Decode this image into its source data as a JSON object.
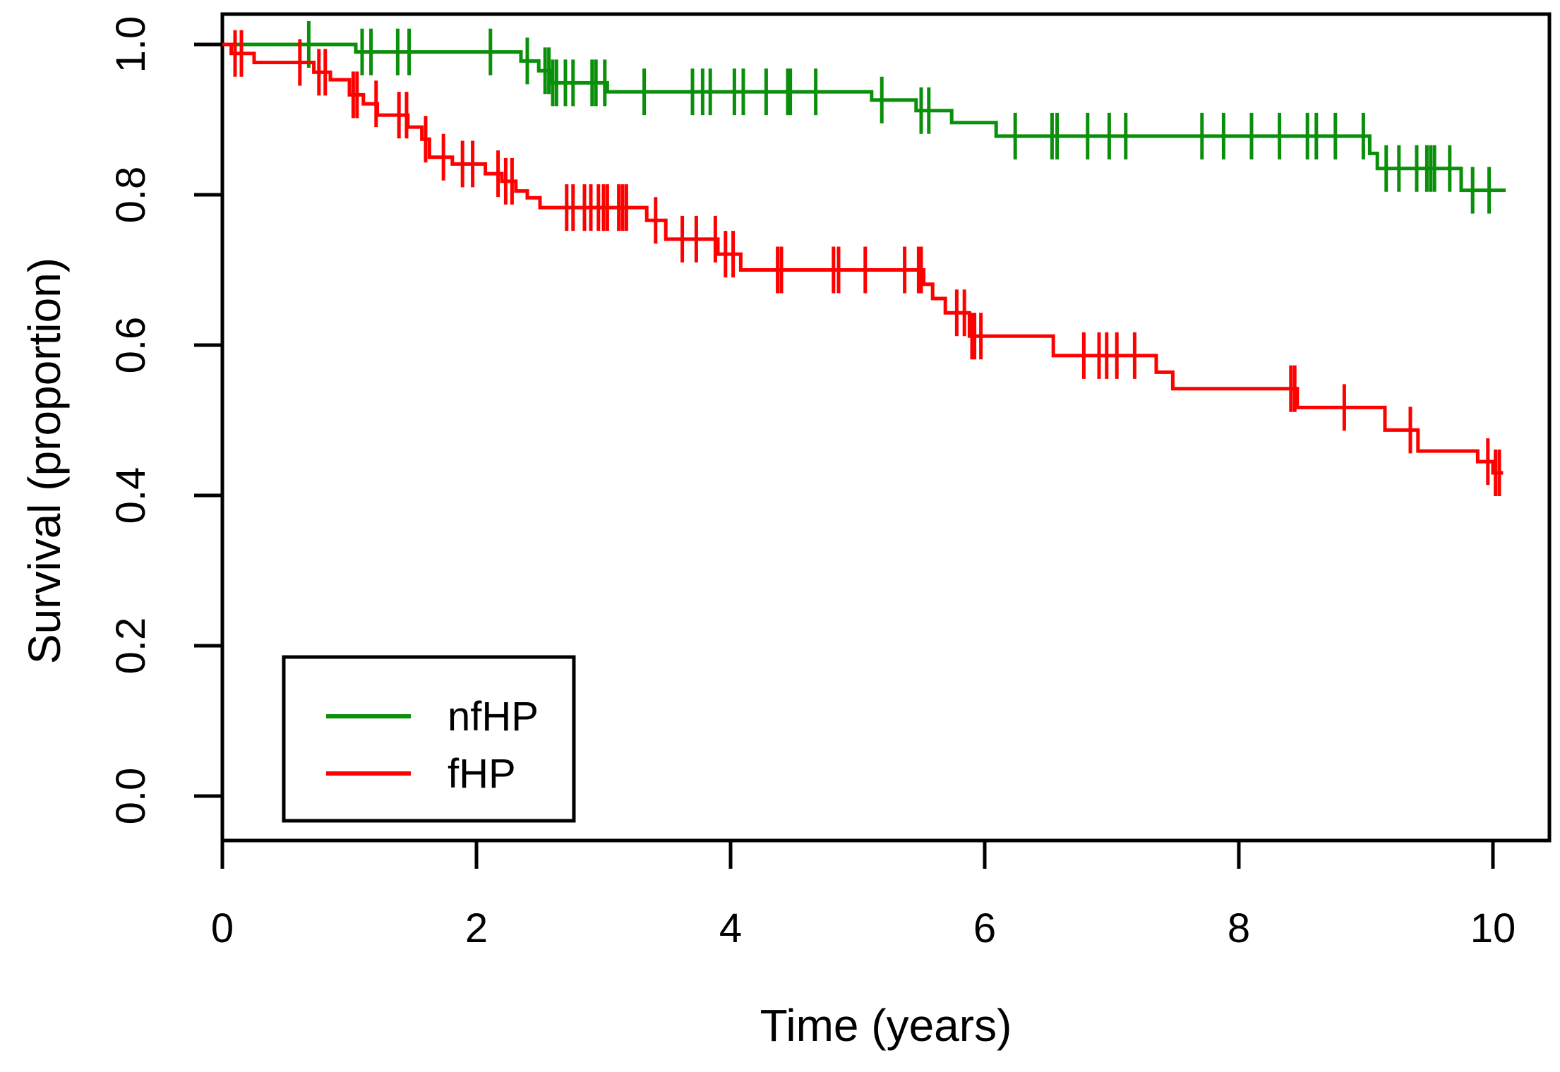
{
  "figure": {
    "title": "",
    "background_color": "#FFFFFF",
    "plot_border_color": "#000000"
  },
  "chart_data": {
    "type": "line",
    "subtype": "kaplan_meier_step",
    "title": "",
    "xlabel": "Time (years)",
    "ylabel": "Survival (proportion)",
    "xlim": [
      0,
      10.4
    ],
    "ylim": [
      -0.06,
      1.04
    ],
    "grid": false,
    "x_ticks": {
      "values": [
        0,
        2,
        4,
        6,
        8,
        10
      ],
      "labels": [
        "0",
        "2",
        "4",
        "6",
        "8",
        "10"
      ]
    },
    "y_ticks": {
      "values": [
        0,
        0.2,
        0.4,
        0.6,
        0.8,
        1.0
      ],
      "labels": [
        "0.0",
        "0.2",
        "0.4",
        "0.6",
        "0.8",
        "1.0"
      ]
    },
    "legend": {
      "position": "bottom-left",
      "items": [
        {
          "label": "nfHP",
          "color": "#0A8F0A"
        },
        {
          "label": "fHP",
          "color": "#FF0000"
        }
      ]
    },
    "series": [
      {
        "name": "nfHP",
        "color": "#0A8F0A",
        "steps": [
          [
            0,
            1.0
          ],
          [
            1.05,
            0.99
          ],
          [
            2.35,
            0.978
          ],
          [
            2.49,
            0.965
          ],
          [
            2.58,
            0.949
          ],
          [
            3.03,
            0.937
          ],
          [
            5.11,
            0.926
          ],
          [
            5.46,
            0.912
          ],
          [
            5.74,
            0.896
          ],
          [
            6.09,
            0.878
          ],
          [
            9.03,
            0.855
          ],
          [
            9.09,
            0.835
          ],
          [
            9.75,
            0.806
          ]
        ],
        "end_time": 10.1,
        "censor_marks": [
          [
            0.68,
            1.0
          ],
          [
            1.1,
            0.99
          ],
          [
            1.17,
            0.99
          ],
          [
            1.38,
            0.99
          ],
          [
            1.47,
            0.99
          ],
          [
            2.11,
            0.99
          ],
          [
            2.4,
            0.978
          ],
          [
            2.54,
            0.965
          ],
          [
            2.57,
            0.965
          ],
          [
            2.6,
            0.949
          ],
          [
            2.63,
            0.949
          ],
          [
            2.7,
            0.949
          ],
          [
            2.76,
            0.949
          ],
          [
            2.91,
            0.949
          ],
          [
            2.94,
            0.949
          ],
          [
            3.01,
            0.949
          ],
          [
            3.32,
            0.937
          ],
          [
            3.7,
            0.937
          ],
          [
            3.78,
            0.937
          ],
          [
            3.84,
            0.937
          ],
          [
            4.03,
            0.937
          ],
          [
            4.1,
            0.937
          ],
          [
            4.28,
            0.937
          ],
          [
            4.45,
            0.937
          ],
          [
            4.47,
            0.937
          ],
          [
            4.67,
            0.937
          ],
          [
            5.19,
            0.926
          ],
          [
            5.5,
            0.912
          ],
          [
            5.56,
            0.912
          ],
          [
            6.24,
            0.878
          ],
          [
            6.53,
            0.878
          ],
          [
            6.57,
            0.878
          ],
          [
            6.81,
            0.878
          ],
          [
            6.98,
            0.878
          ],
          [
            7.11,
            0.878
          ],
          [
            7.71,
            0.878
          ],
          [
            7.88,
            0.878
          ],
          [
            8.1,
            0.878
          ],
          [
            8.32,
            0.878
          ],
          [
            8.54,
            0.878
          ],
          [
            8.61,
            0.878
          ],
          [
            8.76,
            0.878
          ],
          [
            8.98,
            0.878
          ],
          [
            9.16,
            0.835
          ],
          [
            9.26,
            0.835
          ],
          [
            9.4,
            0.835
          ],
          [
            9.48,
            0.835
          ],
          [
            9.51,
            0.835
          ],
          [
            9.54,
            0.835
          ],
          [
            9.66,
            0.835
          ],
          [
            9.84,
            0.806
          ],
          [
            9.97,
            0.806
          ]
        ]
      },
      {
        "name": "fHP",
        "color": "#FF0000",
        "steps": [
          [
            0,
            1.0
          ],
          [
            0.07,
            0.988
          ],
          [
            0.25,
            0.976
          ],
          [
            0.72,
            0.963
          ],
          [
            0.85,
            0.953
          ],
          [
            1.0,
            0.933
          ],
          [
            1.11,
            0.921
          ],
          [
            1.22,
            0.906
          ],
          [
            1.46,
            0.89
          ],
          [
            1.57,
            0.874
          ],
          [
            1.63,
            0.85
          ],
          [
            1.81,
            0.841
          ],
          [
            2.07,
            0.828
          ],
          [
            2.2,
            0.818
          ],
          [
            2.31,
            0.805
          ],
          [
            2.4,
            0.796
          ],
          [
            2.5,
            0.783
          ],
          [
            3.34,
            0.766
          ],
          [
            3.49,
            0.741
          ],
          [
            3.9,
            0.721
          ],
          [
            4.08,
            0.7
          ],
          [
            5.52,
            0.681
          ],
          [
            5.59,
            0.662
          ],
          [
            5.69,
            0.643
          ],
          [
            5.88,
            0.612
          ],
          [
            6.54,
            0.586
          ],
          [
            7.35,
            0.564
          ],
          [
            7.48,
            0.542
          ],
          [
            8.46,
            0.517
          ],
          [
            9.15,
            0.487
          ],
          [
            9.41,
            0.459
          ],
          [
            9.88,
            0.445
          ],
          [
            10.0,
            0.43
          ]
        ],
        "end_time": 10.08,
        "censor_marks": [
          [
            0.1,
            0.988
          ],
          [
            0.15,
            0.988
          ],
          [
            0.61,
            0.976
          ],
          [
            0.76,
            0.963
          ],
          [
            0.81,
            0.963
          ],
          [
            1.03,
            0.933
          ],
          [
            1.06,
            0.933
          ],
          [
            1.21,
            0.921
          ],
          [
            1.39,
            0.906
          ],
          [
            1.45,
            0.906
          ],
          [
            1.6,
            0.874
          ],
          [
            1.74,
            0.85
          ],
          [
            1.89,
            0.841
          ],
          [
            1.97,
            0.841
          ],
          [
            2.17,
            0.828
          ],
          [
            2.23,
            0.818
          ],
          [
            2.28,
            0.818
          ],
          [
            2.71,
            0.783
          ],
          [
            2.76,
            0.783
          ],
          [
            2.85,
            0.783
          ],
          [
            2.9,
            0.783
          ],
          [
            2.96,
            0.783
          ],
          [
            3.0,
            0.783
          ],
          [
            3.03,
            0.783
          ],
          [
            3.12,
            0.783
          ],
          [
            3.15,
            0.783
          ],
          [
            3.18,
            0.783
          ],
          [
            3.41,
            0.766
          ],
          [
            3.62,
            0.741
          ],
          [
            3.73,
            0.741
          ],
          [
            3.88,
            0.741
          ],
          [
            3.96,
            0.721
          ],
          [
            4.02,
            0.721
          ],
          [
            4.37,
            0.7
          ],
          [
            4.4,
            0.7
          ],
          [
            4.81,
            0.7
          ],
          [
            4.85,
            0.7
          ],
          [
            5.06,
            0.7
          ],
          [
            5.37,
            0.7
          ],
          [
            5.48,
            0.7
          ],
          [
            5.5,
            0.7
          ],
          [
            5.78,
            0.643
          ],
          [
            5.84,
            0.643
          ],
          [
            5.9,
            0.612
          ],
          [
            5.92,
            0.612
          ],
          [
            5.97,
            0.612
          ],
          [
            6.78,
            0.586
          ],
          [
            6.9,
            0.586
          ],
          [
            6.96,
            0.586
          ],
          [
            7.04,
            0.586
          ],
          [
            7.18,
            0.586
          ],
          [
            8.41,
            0.542
          ],
          [
            8.44,
            0.542
          ],
          [
            8.83,
            0.517
          ],
          [
            9.35,
            0.487
          ],
          [
            9.96,
            0.445
          ],
          [
            10.02,
            0.43
          ],
          [
            10.05,
            0.43
          ]
        ]
      }
    ]
  }
}
